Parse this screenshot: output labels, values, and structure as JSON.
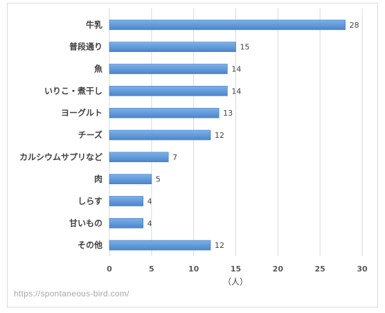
{
  "chart_data": {
    "type": "bar",
    "orientation": "horizontal",
    "categories": [
      "牛乳",
      "普段通り",
      "魚",
      "いりこ・煮干し",
      "ヨーグルト",
      "チーズ",
      "カルシウムサプリなど",
      "肉",
      "しらす",
      "甘いもの",
      "その他"
    ],
    "values": [
      28,
      15,
      14,
      14,
      13,
      12,
      7,
      5,
      4,
      4,
      12
    ],
    "xlabel": "（人）",
    "xlim": [
      0,
      30
    ],
    "xticks": [
      0,
      5,
      10,
      15,
      20,
      25,
      30
    ],
    "grid": true,
    "data_labels": true,
    "bar_color": "#4a86cf",
    "bar_color_light": "#7fb0e6"
  },
  "watermark": "https://spontaneous-bird.com/"
}
